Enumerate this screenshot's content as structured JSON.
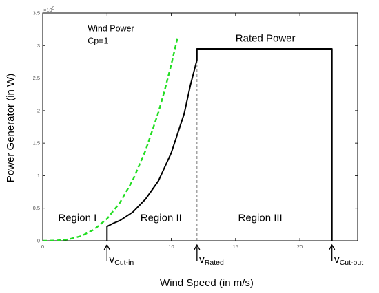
{
  "chart_data": {
    "type": "line",
    "xlabel": "Wind Speed (in m/s)",
    "ylabel": "Power Generator (in W)",
    "y_multiplier": "×10",
    "y_multiplier_exp": "5",
    "xlim": [
      0,
      24.5
    ],
    "ylim": [
      0,
      3.5
    ],
    "x_ticks": [
      "0",
      "5",
      "10",
      "15",
      "20"
    ],
    "y_ticks": [
      "0",
      "0.5",
      "1",
      "1.5",
      "2",
      "2.5",
      "3",
      "3.5"
    ],
    "grid": false,
    "colors": {
      "wind_power": "#22dd22",
      "power_curve": "#000000",
      "rated_dash": "#777777"
    },
    "series": [
      {
        "name": "",
        "style": "dashed",
        "x": [
          0,
          1,
          2,
          3,
          4,
          5,
          6,
          7,
          8,
          9,
          9.5,
          10,
          10.5
        ],
        "y": [
          0,
          0.003,
          0.022,
          0.073,
          0.173,
          0.338,
          0.584,
          0.928,
          1.386,
          1.973,
          2.322,
          2.707,
          3.134
        ]
      },
      {
        "name": "",
        "style": "solid",
        "x": [
          5,
          5,
          5.5,
          6,
          7,
          8,
          9,
          10,
          11,
          11.5,
          12,
          12,
          22.5,
          22.5
        ],
        "y": [
          0,
          0.22,
          0.27,
          0.31,
          0.44,
          0.64,
          0.92,
          1.35,
          1.95,
          2.4,
          2.78,
          2.95,
          2.95,
          0
        ]
      }
    ],
    "rated_speed_line": {
      "x": 12,
      "y": 2.95
    },
    "annotations": [
      {
        "text": "Wind Power",
        "x": 3.5,
        "y": 3.22
      },
      {
        "text": "Cp=1",
        "x": 3.5,
        "y": 3.03
      },
      {
        "text": "Rated Power",
        "x": 15,
        "y": 3.06
      },
      {
        "text": "Region I",
        "x": 1.2,
        "y": 0.3
      },
      {
        "text": "Region II",
        "x": 7.6,
        "y": 0.3
      },
      {
        "text": "Region III",
        "x": 15.2,
        "y": 0.3
      }
    ],
    "speed_markers": [
      {
        "main": "v",
        "sub": "Cut-in",
        "x": 5
      },
      {
        "main": "v",
        "sub": "Rated",
        "x": 12
      },
      {
        "main": "v",
        "sub": "Cut-out",
        "x": 22.5
      }
    ]
  }
}
